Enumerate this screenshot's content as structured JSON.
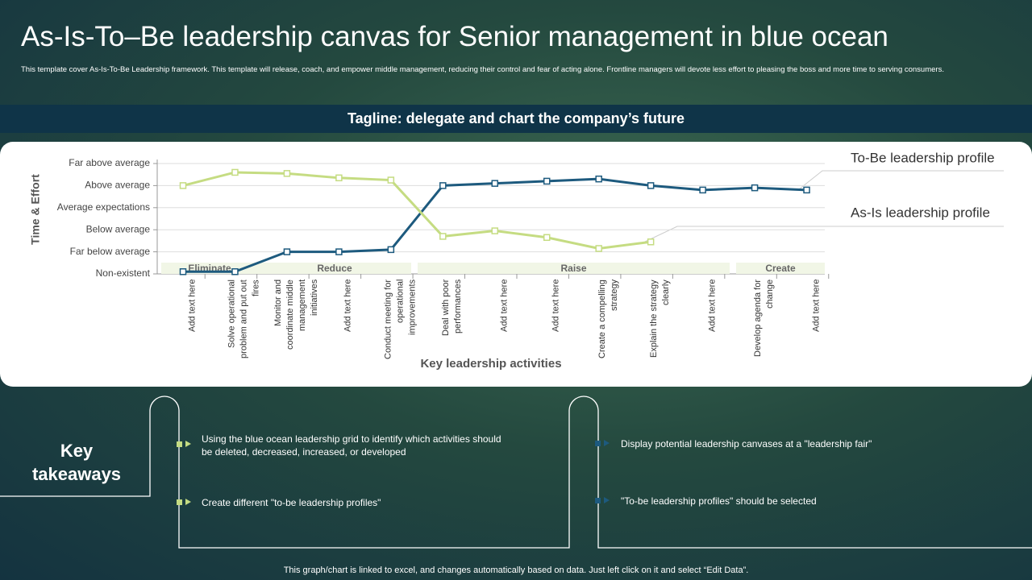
{
  "title": "As-Is-To–Be leadership canvas for Senior management in blue ocean",
  "subtitle": "This template cover As-Is-To-Be Leadership framework. This template will release, coach, and empower middle management, reducing their control and fear of acting alone. Frontline managers will devote less effort to pleasing the boss and more time to serving consumers.",
  "tagline": "Tagline: delegate and chart the company’s future",
  "chart_data": {
    "type": "line",
    "ylabel": "Time & Effort",
    "xlabel": "Key leadership activities",
    "categories": [
      "Add text here",
      "Solve operational problem and put out fires",
      "Monitor and coordinate middle management initiatives",
      "Add text here",
      "Conduct meeting for operational improvements",
      "Deal with poor performances",
      "Add text here",
      "Add text here",
      "Create a compelling strategy",
      "Explain the strategy clearly",
      "Add text here",
      "Develop agenda for change",
      "Add text here"
    ],
    "ylim": [
      0,
      5
    ],
    "yticks": [
      {
        "value": 0,
        "label": "Non-existent"
      },
      {
        "value": 1,
        "label": "Far below average"
      },
      {
        "value": 2,
        "label": "Below average"
      },
      {
        "value": 3,
        "label": "Average expectations"
      },
      {
        "value": 4,
        "label": "Above average"
      },
      {
        "value": 5,
        "label": "Far above average"
      }
    ],
    "grid": true,
    "phases": [
      "Eliminate",
      "Reduce",
      "Raise",
      "Create"
    ],
    "series": [
      {
        "name": "To-Be leadership profile",
        "color": "#1d5a7e",
        "values": [
          0.1,
          0.1,
          1.0,
          1.0,
          1.1,
          4.0,
          4.1,
          4.2,
          4.3,
          4.0,
          3.8,
          3.9,
          3.8
        ]
      },
      {
        "name": "As-Is leadership profile",
        "color": "#c5dc82",
        "values": [
          4.0,
          4.6,
          4.55,
          4.35,
          4.25,
          1.7,
          1.95,
          1.65,
          1.15,
          1.45,
          null,
          null,
          null
        ]
      }
    ]
  },
  "takeaways": {
    "heading": "Key takeaways",
    "items": [
      "Using the blue ocean leadership grid to identify which activities should be deleted, decreased, increased, or developed",
      "Create different  \"to-be leadership profiles\"",
      "Display potential leadership canvases at a \"leadership fair\"",
      "\"To-be leadership profiles\" should be selected"
    ]
  },
  "footer": "This graph/chart is linked to excel, and changes automatically based on data. Just left click on it and select “Edit Data”."
}
